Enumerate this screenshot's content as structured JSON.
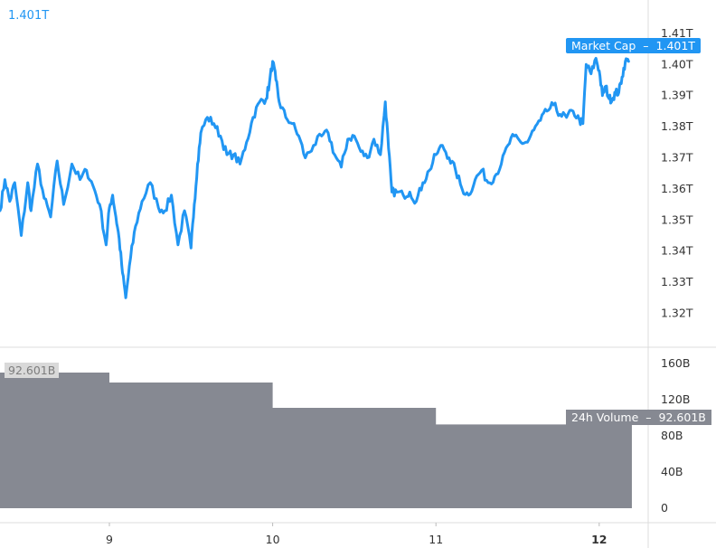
{
  "chart_data": {
    "type": "line",
    "title": "",
    "xlabel": "",
    "ylabel": "",
    "x_ticks": [
      "9",
      "10",
      "11",
      "12"
    ],
    "x_tick_bold": "12",
    "x_range": [
      8.33,
      12.3
    ],
    "price_panel": {
      "ylim": [
        1.3155,
        1.4155
      ],
      "y_ticks": [
        "1.41T",
        "1.40T",
        "1.39T",
        "1.38T",
        "1.37T",
        "1.36T",
        "1.35T",
        "1.34T",
        "1.33T",
        "1.32T"
      ],
      "y_tick_values": [
        1.41,
        1.4,
        1.39,
        1.38,
        1.37,
        1.36,
        1.35,
        1.34,
        1.33,
        1.32
      ],
      "series": [
        {
          "name": "Market Cap",
          "color": "#2196f3",
          "x": [
            8.33,
            8.36,
            8.39,
            8.42,
            8.46,
            8.5,
            8.52,
            8.56,
            8.6,
            8.64,
            8.68,
            8.72,
            8.77,
            8.82,
            8.86,
            8.9,
            8.94,
            8.98,
            9.0,
            9.02,
            9.04,
            9.06,
            9.08,
            9.1,
            9.13,
            9.16,
            9.2,
            9.25,
            9.3,
            9.34,
            9.38,
            9.42,
            9.46,
            9.5,
            9.52,
            9.54,
            9.56,
            9.6,
            9.64,
            9.68,
            9.72,
            9.76,
            9.8,
            9.84,
            9.88,
            9.92,
            9.96,
            9.98,
            10.0,
            10.02,
            10.04,
            10.08,
            10.12,
            10.16,
            10.2,
            10.25,
            10.3,
            10.34,
            10.38,
            10.42,
            10.46,
            10.5,
            10.54,
            10.58,
            10.62,
            10.66,
            10.69,
            10.71,
            10.73,
            10.76,
            10.8,
            10.84,
            10.88,
            10.92,
            10.96,
            11.0,
            11.04,
            11.08,
            11.12,
            11.16,
            11.2,
            11.24,
            11.28,
            11.32,
            11.36,
            11.4,
            11.44,
            11.48,
            11.52,
            11.56,
            11.6,
            11.64,
            11.68,
            11.72,
            11.76,
            11.8,
            11.84,
            11.88,
            11.9,
            11.92,
            11.95,
            11.98,
            12.0,
            12.02,
            12.04,
            12.06,
            12.08,
            12.1,
            12.12,
            12.14,
            12.16,
            12.18
          ],
          "values": [
            1.353,
            1.363,
            1.356,
            1.362,
            1.345,
            1.362,
            1.353,
            1.368,
            1.357,
            1.351,
            1.369,
            1.355,
            1.368,
            1.363,
            1.366,
            1.361,
            1.355,
            1.342,
            1.354,
            1.358,
            1.351,
            1.344,
            1.333,
            1.325,
            1.338,
            1.348,
            1.356,
            1.362,
            1.354,
            1.353,
            1.358,
            1.342,
            1.353,
            1.341,
            1.355,
            1.368,
            1.378,
            1.383,
            1.381,
            1.377,
            1.371,
            1.371,
            1.368,
            1.375,
            1.383,
            1.388,
            1.389,
            1.394,
            1.401,
            1.395,
            1.388,
            1.383,
            1.381,
            1.377,
            1.37,
            1.374,
            1.377,
            1.378,
            1.371,
            1.367,
            1.376,
            1.377,
            1.372,
            1.37,
            1.376,
            1.371,
            1.388,
            1.373,
            1.359,
            1.359,
            1.358,
            1.359,
            1.356,
            1.362,
            1.366,
            1.371,
            1.374,
            1.37,
            1.366,
            1.36,
            1.358,
            1.363,
            1.366,
            1.362,
            1.364,
            1.368,
            1.374,
            1.377,
            1.375,
            1.375,
            1.379,
            1.382,
            1.385,
            1.387,
            1.384,
            1.383,
            1.385,
            1.382,
            1.381,
            1.4,
            1.397,
            1.402,
            1.398,
            1.39,
            1.393,
            1.389,
            1.389,
            1.391,
            1.391,
            1.396,
            1.401,
            1.401
          ]
        }
      ],
      "last_label": "1.401T",
      "tag_name": "Market Cap",
      "tag_value": "1.401T"
    },
    "volume_panel": {
      "type": "area",
      "ylim": [
        0,
        172
      ],
      "y_ticks": [
        "160B",
        "120B",
        "80B",
        "40B",
        "0"
      ],
      "y_tick_values": [
        160,
        120,
        80,
        40,
        0
      ],
      "color": "#868992",
      "series": [
        {
          "name": "24h Volume",
          "steps": [
            {
              "x0": 8.33,
              "x1": 9.0,
              "value": 150
            },
            {
              "x0": 9.0,
              "x1": 10.0,
              "value": 139
            },
            {
              "x0": 10.0,
              "x1": 11.0,
              "value": 111
            },
            {
              "x0": 11.0,
              "x1": 12.2,
              "value": 92.6
            }
          ]
        }
      ],
      "last_label": "92.601B",
      "tag_name": "24h Volume",
      "tag_value": "92.601B"
    }
  }
}
